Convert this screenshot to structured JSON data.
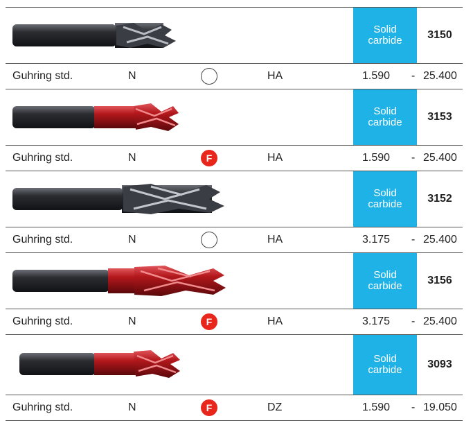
{
  "rows": [
    {
      "tool_finish": "dark",
      "material_line1": "Solid",
      "material_line2": "carbide",
      "code": "3150",
      "standard": "Guhring std.",
      "type": "N",
      "coating": "none",
      "coating_label": "",
      "shank": "HA",
      "diameter_min": "1.590",
      "dash": "-",
      "diameter_max": "25.400"
    },
    {
      "tool_finish": "red",
      "material_line1": "Solid",
      "material_line2": "carbide",
      "code": "3153",
      "standard": "Guhring std.",
      "type": "N",
      "coating": "F",
      "coating_label": "F",
      "shank": "HA",
      "diameter_min": "1.590",
      "dash": "-",
      "diameter_max": "25.400"
    },
    {
      "tool_finish": "dark",
      "material_line1": "Solid",
      "material_line2": "carbide",
      "code": "3152",
      "standard": "Guhring std.",
      "type": "N",
      "coating": "none",
      "coating_label": "",
      "shank": "HA",
      "diameter_min": "3.175",
      "dash": "-",
      "diameter_max": "25.400"
    },
    {
      "tool_finish": "red",
      "material_line1": "Solid",
      "material_line2": "carbide",
      "code": "3156",
      "standard": "Guhring std.",
      "type": "N",
      "coating": "F",
      "coating_label": "F",
      "shank": "HA",
      "diameter_min": "3.175",
      "dash": "-",
      "diameter_max": "25.400"
    },
    {
      "tool_finish": "red",
      "material_line1": "Solid",
      "material_line2": "carbide",
      "code": "3093",
      "standard": "Guhring std.",
      "type": "N",
      "coating": "F",
      "coating_label": "F",
      "shank": "DZ",
      "diameter_min": "1.590",
      "dash": "-",
      "diameter_max": "19.050"
    }
  ],
  "colors": {
    "material_bg": "#1fb2e6",
    "coating_f": "#e8261b",
    "tool_dark": "#2b2d31",
    "tool_red": "#b3181c"
  }
}
